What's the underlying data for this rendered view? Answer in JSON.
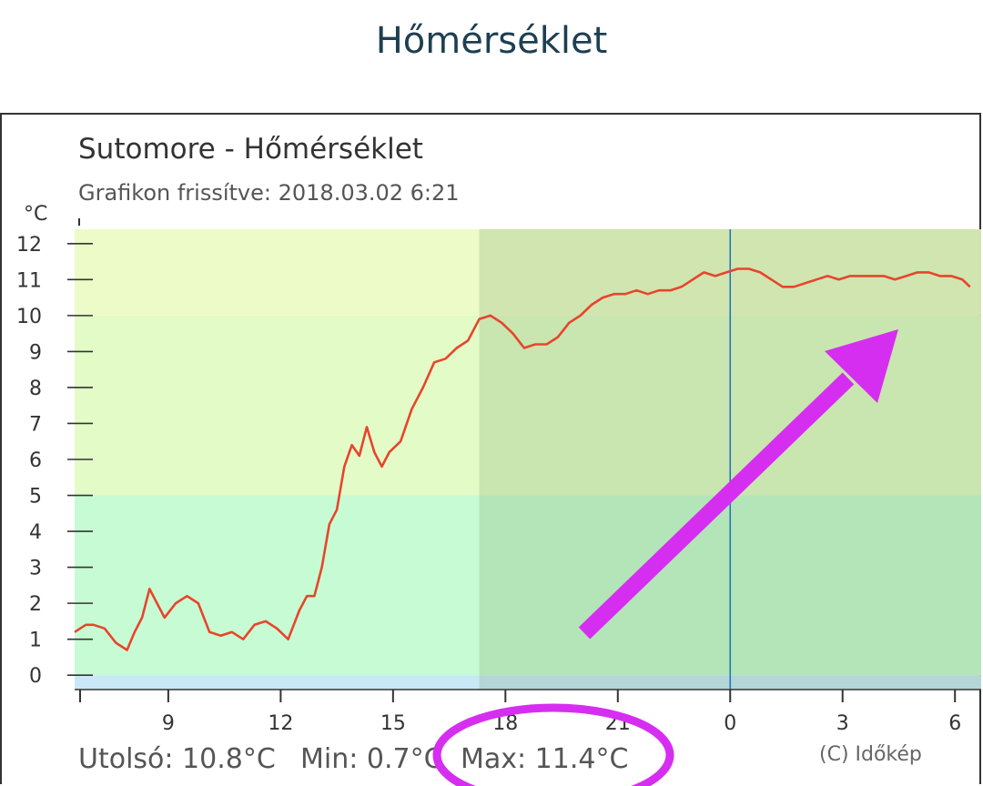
{
  "page": {
    "heading": "Hőmérséklet"
  },
  "colors": {
    "heading": "#1d3f52",
    "line": "#e8452c",
    "band_0_5": "#c7fbd3",
    "band_5_10": "#e2fbc7",
    "band_10_12": "#ecfbc7",
    "band_below_0": "#c9e8f7",
    "night_overlay": "#6b8f56",
    "now_line": "#1f7ab8",
    "annotation": "#d62ef0"
  },
  "chart_data": {
    "type": "line",
    "title": "Sutomore - Hőmérséklet",
    "subtitle": "Grafikon frissítve: 2018.03.02 6:21",
    "ylabel": "°C",
    "ylim": [
      -0.4,
      12.4
    ],
    "y_ticks": [
      "0",
      "1",
      "2",
      "3",
      "4",
      "5",
      "6",
      "7",
      "8",
      "9",
      "10",
      "11",
      "12"
    ],
    "x_ticks": [
      "9",
      "12",
      "15",
      "18",
      "21",
      "0",
      "3",
      "6"
    ],
    "x_tick_hours": [
      9,
      12,
      15,
      18,
      21,
      24,
      27,
      30
    ],
    "xlim": [
      6.5,
      30.7
    ],
    "night_start_hour": 17.3,
    "now_hour": 24,
    "bands": [
      {
        "from": -0.4,
        "to": 0,
        "color": "#c9e8f7"
      },
      {
        "from": 0,
        "to": 5,
        "color": "#c7fbd3"
      },
      {
        "from": 5,
        "to": 10,
        "color": "#e2fbc7"
      },
      {
        "from": 10,
        "to": 12.4,
        "color": "#ecfbc7"
      }
    ],
    "series": [
      {
        "x": [
          6.5,
          6.8,
          7.0,
          7.3,
          7.6,
          7.9,
          8.1,
          8.3,
          8.5,
          8.7,
          8.9,
          9.2,
          9.5,
          9.8,
          10.1,
          10.4,
          10.7,
          11.0,
          11.3,
          11.6,
          11.9,
          12.2,
          12.5,
          12.7,
          12.9,
          13.1,
          13.3,
          13.5,
          13.7,
          13.9,
          14.1,
          14.3,
          14.5,
          14.7,
          14.9,
          15.2,
          15.5,
          15.8,
          16.1,
          16.4,
          16.7,
          17.0,
          17.3,
          17.6,
          17.9,
          18.2,
          18.5,
          18.8,
          19.1,
          19.4,
          19.7,
          20.0,
          20.3,
          20.6,
          20.9,
          21.2,
          21.5,
          21.8,
          22.1,
          22.4,
          22.7,
          23.0,
          23.3,
          23.6,
          23.9,
          24.2,
          24.5,
          24.8,
          25.1,
          25.4,
          25.7,
          26.0,
          26.3,
          26.6,
          26.9,
          27.2,
          27.5,
          27.8,
          28.1,
          28.4,
          28.7,
          29.0,
          29.3,
          29.6,
          29.9,
          30.2,
          30.4
        ],
        "values": [
          1.2,
          1.4,
          1.4,
          1.3,
          0.9,
          0.7,
          1.2,
          1.6,
          2.4,
          2.0,
          1.6,
          2.0,
          2.2,
          2.0,
          1.2,
          1.1,
          1.2,
          1.0,
          1.4,
          1.5,
          1.3,
          1.0,
          1.8,
          2.2,
          2.2,
          3.0,
          4.2,
          4.6,
          5.8,
          6.4,
          6.1,
          6.9,
          6.2,
          5.8,
          6.2,
          6.5,
          7.4,
          8.0,
          8.7,
          8.8,
          9.1,
          9.3,
          9.9,
          10.0,
          9.8,
          9.5,
          9.1,
          9.2,
          9.2,
          9.4,
          9.8,
          10.0,
          10.3,
          10.5,
          10.6,
          10.6,
          10.7,
          10.6,
          10.7,
          10.7,
          10.8,
          11.0,
          11.2,
          11.1,
          11.2,
          11.3,
          11.3,
          11.2,
          11.0,
          10.8,
          10.8,
          10.9,
          11.0,
          11.1,
          11.0,
          11.1,
          11.1,
          11.1,
          11.1,
          11.0,
          11.1,
          11.2,
          11.2,
          11.1,
          11.1,
          11.0,
          10.8
        ]
      }
    ],
    "footer": {
      "last": "Utolsó: 10.8°C",
      "min": "Min: 0.7°C",
      "max": "Max: 11.4°C",
      "copyright": "(C) Időkép"
    }
  }
}
